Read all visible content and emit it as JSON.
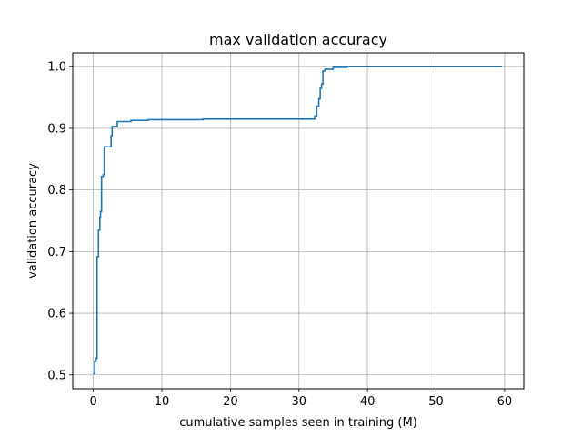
{
  "chart_data": {
    "type": "line",
    "title": "max validation accuracy",
    "xlabel": "cumulative samples seen in training (M)",
    "ylabel": "validation accuracy",
    "xlim": [
      -3,
      62.8
    ],
    "ylim": [
      0.4775,
      1.0225
    ],
    "xticks": [
      0,
      10,
      20,
      30,
      40,
      50,
      60
    ],
    "yticks": [
      0.5,
      0.6,
      0.7,
      0.8,
      0.9,
      1.0
    ],
    "xtick_labels": [
      "0",
      "10",
      "20",
      "30",
      "40",
      "50",
      "60"
    ],
    "ytick_labels": [
      "0.5",
      "0.6",
      "0.7",
      "0.8",
      "0.9",
      "1.0"
    ],
    "grid": true,
    "colors": {
      "line": "#1f77b4",
      "grid": "#b0b0b0",
      "axes": "#000000"
    },
    "series": [
      {
        "step": "post",
        "x": [
          0.0,
          0.2,
          0.4,
          0.55,
          0.75,
          0.95,
          1.05,
          1.2,
          1.45,
          1.6,
          1.9,
          2.6,
          2.75,
          3.0,
          3.5,
          5.5,
          8.0,
          16.0,
          32.3,
          32.6,
          32.9,
          33.1,
          33.3,
          33.5,
          33.8,
          35.0,
          37.0,
          46.0,
          59.6
        ],
        "y": [
          0.502,
          0.522,
          0.527,
          0.692,
          0.735,
          0.756,
          0.765,
          0.822,
          0.825,
          0.87,
          0.87,
          0.888,
          0.903,
          0.903,
          0.911,
          0.913,
          0.914,
          0.915,
          0.92,
          0.936,
          0.948,
          0.965,
          0.972,
          0.993,
          0.996,
          0.999,
          1.0,
          1.0,
          1.0
        ]
      }
    ]
  }
}
